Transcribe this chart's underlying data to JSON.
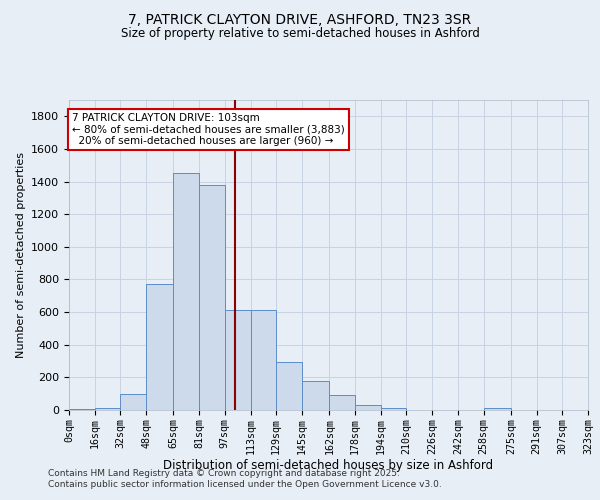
{
  "title_line1": "7, PATRICK CLAYTON DRIVE, ASHFORD, TN23 3SR",
  "title_line2": "Size of property relative to semi-detached houses in Ashford",
  "xlabel": "Distribution of semi-detached houses by size in Ashford",
  "ylabel": "Number of semi-detached properties",
  "footer_line1": "Contains HM Land Registry data © Crown copyright and database right 2025.",
  "footer_line2": "Contains public sector information licensed under the Open Government Licence v3.0.",
  "property_size": 103,
  "smaller_pct": 80,
  "smaller_count": 3883,
  "larger_pct": 20,
  "larger_count": 960,
  "bin_edges": [
    0,
    16,
    32,
    48,
    65,
    81,
    97,
    113,
    129,
    145,
    162,
    178,
    194,
    210,
    226,
    242,
    258,
    275,
    291,
    307,
    323
  ],
  "bin_counts": [
    5,
    10,
    100,
    770,
    1450,
    1380,
    615,
    615,
    295,
    175,
    90,
    30,
    15,
    0,
    0,
    0,
    10,
    0,
    0,
    0
  ],
  "bar_facecolor": "#cddaeb",
  "bar_edgecolor": "#5b8dc8",
  "vline_x": 103,
  "vline_color": "#8b0000",
  "grid_color": "#c8d4e4",
  "bg_color": "#e8eef6",
  "annotation_box_facecolor": "#ffffff",
  "annotation_border_color": "#cc0000",
  "ylim": [
    0,
    1900
  ],
  "yticks": [
    0,
    200,
    400,
    600,
    800,
    1000,
    1200,
    1400,
    1600,
    1800
  ]
}
